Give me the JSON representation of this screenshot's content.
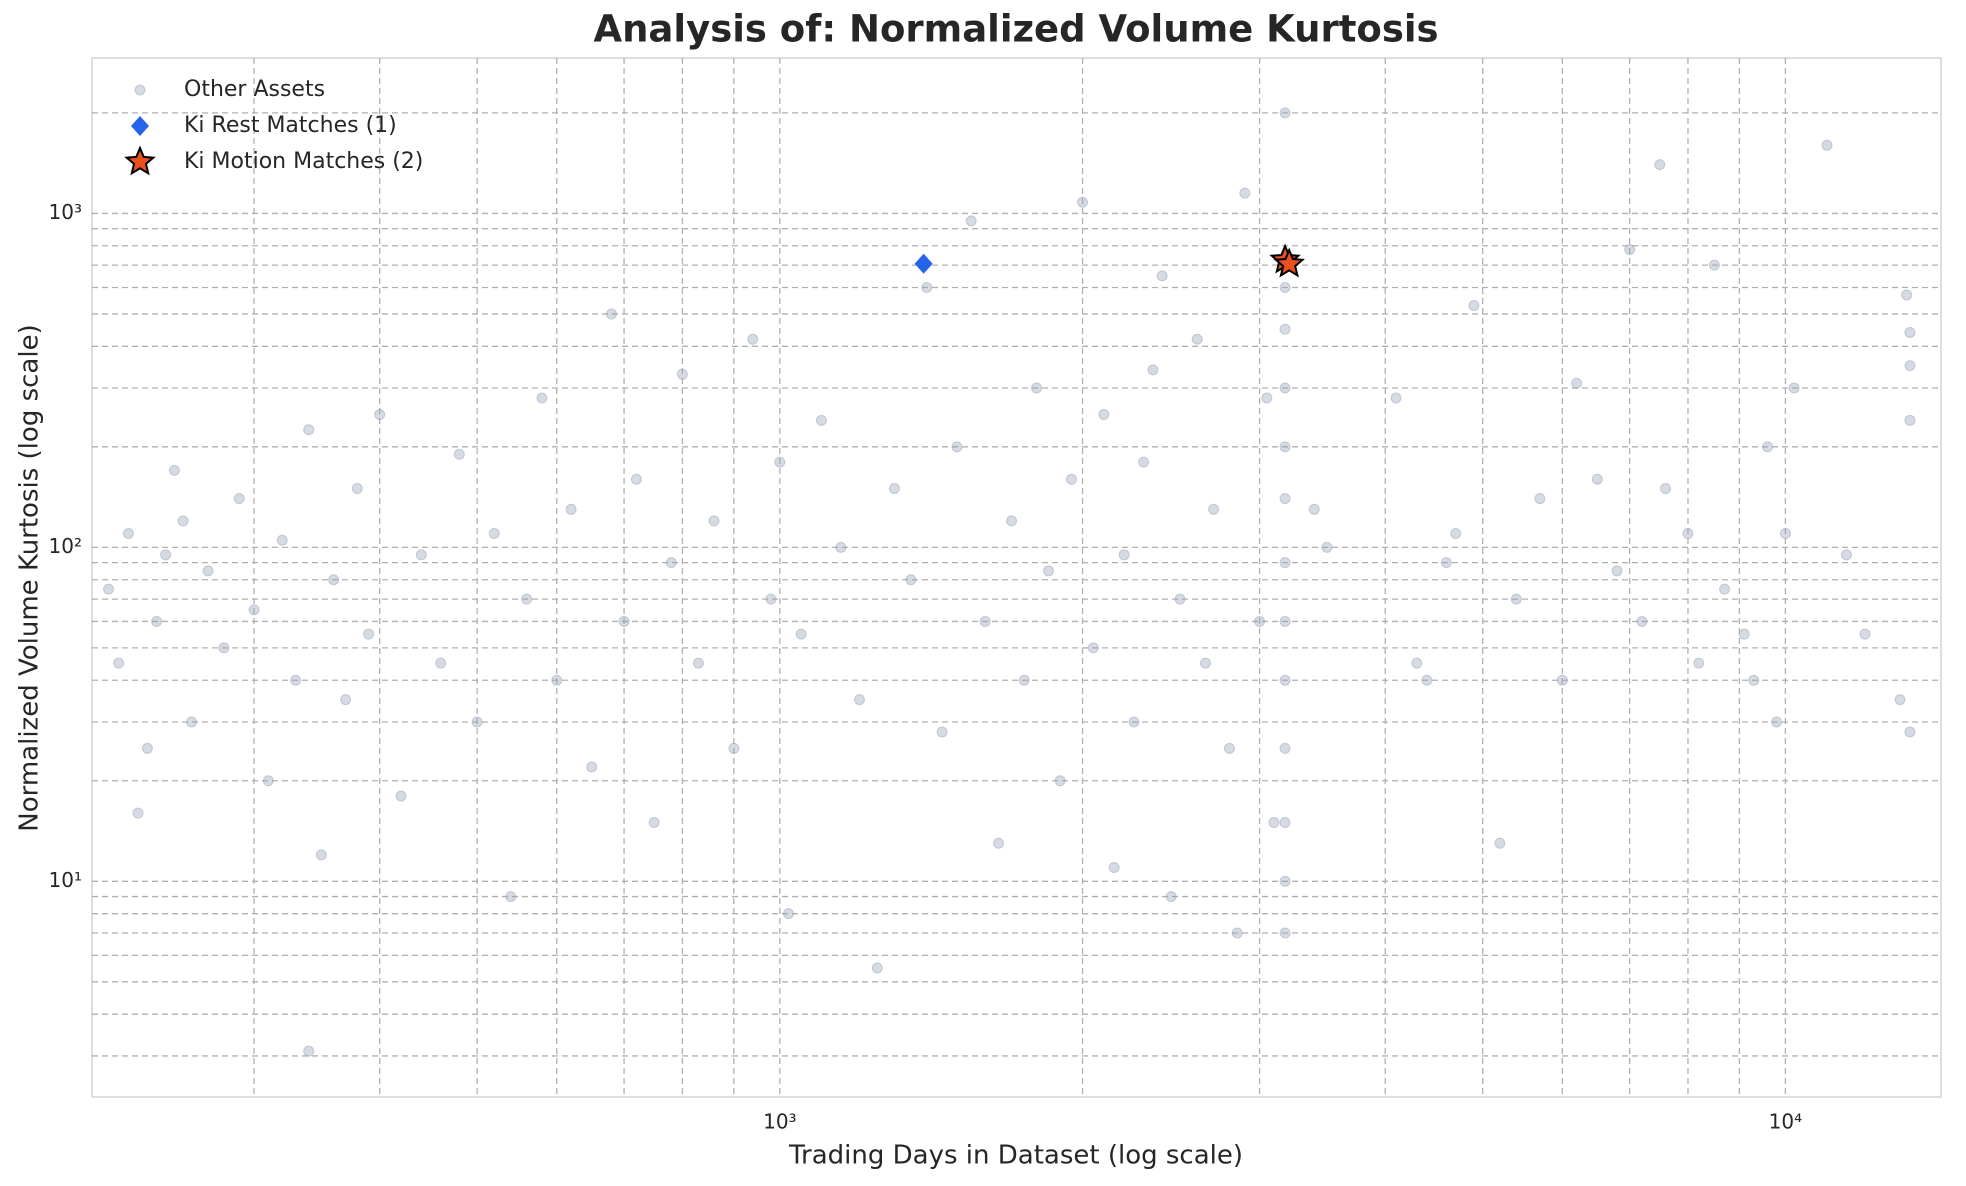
{
  "chart_data": {
    "type": "scatter",
    "title": "Analysis of: Normalized Volume Kurtosis",
    "x_label": "Trading Days in Dataset (log scale)",
    "y_label": "Normalized Volume Kurtosis (log scale)",
    "xscale": "log",
    "yscale": "log",
    "grid": true,
    "legend": "upper left",
    "xlim": [
      207,
      14280
    ],
    "ylim": [
      2.26,
      2920
    ],
    "xticks": [
      {
        "value": 1000,
        "label": "10³"
      },
      {
        "value": 10000,
        "label": "10⁴"
      }
    ],
    "yticks": [
      {
        "value": 10,
        "label": "10¹"
      },
      {
        "value": 100,
        "label": "10²"
      },
      {
        "value": 1000,
        "label": "10³"
      }
    ],
    "xminorticks": [
      300,
      400,
      500,
      600,
      700,
      800,
      900,
      2000,
      3000,
      4000,
      5000,
      6000,
      7000,
      8000,
      9000
    ],
    "yminorticks": [
      3,
      4,
      5,
      6,
      7,
      8,
      9,
      20,
      30,
      40,
      50,
      60,
      70,
      80,
      90,
      200,
      300,
      400,
      500,
      600,
      700,
      800,
      900,
      2000
    ],
    "series": [
      {
        "name": "Other Assets",
        "color": "#97a3b8",
        "marker": "circle",
        "x": [
          215,
          220,
          225,
          230,
          235,
          240,
          245,
          250,
          255,
          260,
          270,
          280,
          290,
          300,
          310,
          320,
          330,
          340,
          350,
          360,
          370,
          380,
          390,
          400,
          420,
          440,
          460,
          480,
          500,
          520,
          540,
          560,
          580,
          600,
          620,
          650,
          680,
          700,
          720,
          750,
          780,
          800,
          830,
          860,
          900,
          940,
          980,
          1000,
          1020,
          1050,
          1100,
          1150,
          1200,
          1250,
          1300,
          1350,
          1400,
          1450,
          1500,
          1550,
          1600,
          1650,
          1700,
          1750,
          1800,
          1850,
          1900,
          1950,
          2000,
          2050,
          2100,
          2150,
          2200,
          2250,
          2300,
          2350,
          2400,
          2450,
          2500,
          2600,
          2650,
          2700,
          2800,
          2850,
          2900,
          3000,
          3050,
          3100,
          3180,
          3180,
          3180,
          3180,
          3180,
          3180,
          3180,
          3180,
          3180,
          3180,
          3180,
          3180,
          3180,
          3400,
          3500,
          4100,
          4300,
          4400,
          4600,
          4700,
          4900,
          5200,
          5400,
          5700,
          6000,
          6200,
          6500,
          6800,
          7000,
          7200,
          7500,
          7600,
          8000,
          8200,
          8500,
          8700,
          9100,
          9300,
          9600,
          9800,
          10000,
          10200,
          11000,
          11500,
          12000,
          13000,
          13200,
          13300,
          13300,
          13300,
          13300,
          340
        ],
        "y": [
          75,
          45,
          110,
          16,
          25,
          60,
          95,
          170,
          120,
          30,
          85,
          50,
          140,
          65,
          20,
          105,
          40,
          225,
          12,
          80,
          35,
          150,
          55,
          250,
          18,
          95,
          45,
          190,
          30,
          110,
          9,
          70,
          280,
          40,
          130,
          22,
          500,
          60,
          160,
          15,
          90,
          330,
          45,
          120,
          25,
          420,
          70,
          180,
          8,
          55,
          240,
          100,
          35,
          5.5,
          150,
          80,
          600,
          28,
          200,
          950,
          60,
          13,
          120,
          40,
          300,
          85,
          20,
          160,
          1080,
          50,
          250,
          11,
          95,
          30,
          180,
          340,
          650,
          9,
          70,
          420,
          45,
          130,
          25,
          7,
          1150,
          60,
          280,
          15,
          7,
          10,
          15,
          25,
          40,
          60,
          90,
          140,
          200,
          300,
          450,
          600,
          2000,
          130,
          100,
          280,
          45,
          40,
          90,
          110,
          530,
          13,
          70,
          140,
          40,
          310,
          160,
          85,
          780,
          60,
          1400,
          150,
          110,
          45,
          700,
          75,
          55,
          40,
          200,
          30,
          110,
          300,
          1600,
          95,
          55,
          35,
          570,
          240,
          28,
          440,
          350,
          3.1
        ]
      },
      {
        "name": "Ki Rest Matches (1)",
        "color": "#2563eb",
        "marker": "diamond",
        "x": [
          1390
        ],
        "y": [
          707
        ]
      },
      {
        "name": "Ki Motion Matches (2)",
        "color": "#e8501e",
        "marker": "star",
        "x": [
          3180,
          3210
        ],
        "y": [
          725,
          705
        ]
      }
    ]
  }
}
